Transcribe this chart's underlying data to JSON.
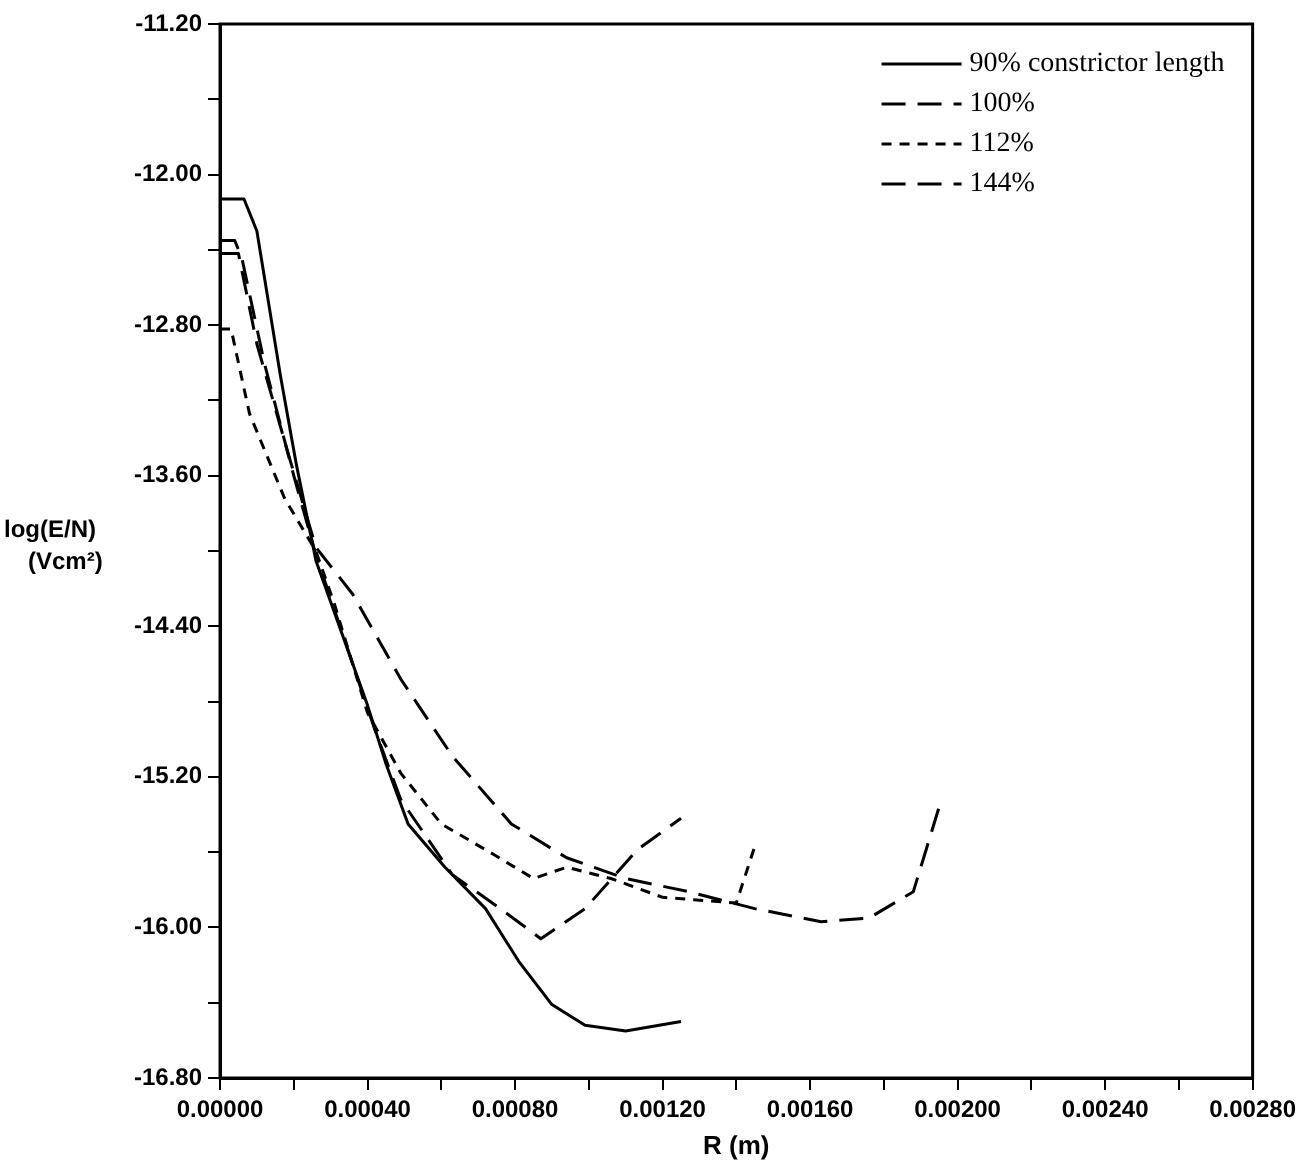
{
  "chart_data": {
    "type": "line",
    "xlabel": "R (m)",
    "ylabel": "log(E/N)\n(Vcm²)",
    "legend": "top right",
    "grid": false,
    "marker": "none",
    "xlim": [
      0,
      0.0028
    ],
    "xticks": [
      {
        "value": 0,
        "label": "0.00000"
      },
      {
        "value": 0.0002,
        "label": null
      },
      {
        "value": 0.0004,
        "label": "0.00040"
      },
      {
        "value": 0.0006,
        "label": null
      },
      {
        "value": 0.0008,
        "label": "0.00080"
      },
      {
        "value": 0.001,
        "label": null
      },
      {
        "value": 0.0012,
        "label": "0.00120"
      },
      {
        "value": 0.0014,
        "label": null
      },
      {
        "value": 0.0016,
        "label": "0.00160"
      },
      {
        "value": 0.0018,
        "label": null
      },
      {
        "value": 0.002,
        "label": "0.00200"
      },
      {
        "value": 0.0022,
        "label": null
      },
      {
        "value": 0.0024,
        "label": "0.00240"
      },
      {
        "value": 0.0026,
        "label": null
      },
      {
        "value": 0.0028,
        "label": "0.00280"
      }
    ],
    "ylim": [
      -16.8,
      -11.2
    ],
    "yticks": [
      {
        "value": -11.2,
        "label": "-11.20"
      },
      {
        "value": -11.6,
        "label": null
      },
      {
        "value": -12.0,
        "label": "-12.00"
      },
      {
        "value": -12.4,
        "label": null
      },
      {
        "value": -12.8,
        "label": "-12.80"
      },
      {
        "value": -13.2,
        "label": null
      },
      {
        "value": -13.6,
        "label": "-13.60"
      },
      {
        "value": -14.0,
        "label": null
      },
      {
        "value": -14.4,
        "label": "-14.40"
      },
      {
        "value": -14.8,
        "label": null
      },
      {
        "value": -15.2,
        "label": "-15.20"
      },
      {
        "value": -15.6,
        "label": null
      },
      {
        "value": -16.0,
        "label": "-16.00"
      },
      {
        "value": -16.4,
        "label": null
      },
      {
        "value": -16.8,
        "label": "-16.80"
      }
    ],
    "series": [
      {
        "name": "90% constrictor length",
        "color": "#000000",
        "line_style": "solid",
        "x": [
          0,
          6.5e-05,
          0.0001,
          0.000164,
          0.000207,
          0.00026,
          0.0004,
          0.00045,
          0.00051,
          0.00061,
          0.00072,
          0.00081,
          0.0009,
          0.00099,
          0.0011,
          0.00125
        ],
        "values": [
          -12.13,
          -12.13,
          -12.3,
          -13.07,
          -13.54,
          -14.05,
          -14.82,
          -15.13,
          -15.45,
          -15.68,
          -15.9,
          -16.18,
          -16.41,
          -16.52,
          -16.55,
          -16.5
        ]
      },
      {
        "name": "100%",
        "color": "#000000",
        "line_style": "dashed",
        "x": [
          0,
          4e-05,
          6e-05,
          0.00012,
          0.0002,
          0.00026,
          0.00042,
          0.00049,
          0.00063,
          0.00076,
          0.00087,
          0.00099,
          0.00113,
          0.00125
        ],
        "values": [
          -12.35,
          -12.35,
          -12.45,
          -13.0,
          -13.6,
          -14.02,
          -14.95,
          -15.32,
          -15.72,
          -15.9,
          -16.06,
          -15.9,
          -15.59,
          -15.42
        ]
      },
      {
        "name": "112%",
        "color": "#000000",
        "line_style": "dotted",
        "x": [
          0,
          3e-05,
          8e-05,
          0.000175,
          0.00026,
          0.00031,
          0.0004,
          0.00049,
          0.0006,
          0.00074,
          0.00085,
          0.00094,
          0.00106,
          0.0012,
          0.0014,
          0.00145
        ],
        "values": [
          -12.82,
          -12.82,
          -13.27,
          -13.72,
          -14.0,
          -14.28,
          -14.86,
          -15.18,
          -15.45,
          -15.61,
          -15.74,
          -15.68,
          -15.74,
          -15.84,
          -15.87,
          -15.57
        ]
      },
      {
        "name": "144%",
        "color": "#000000",
        "line_style": "dashed",
        "x": [
          0,
          5e-05,
          0.0001,
          0.00018,
          0.00026,
          0.00036,
          0.00049,
          0.00063,
          0.00079,
          0.00094,
          0.0011,
          0.00127,
          0.00145,
          0.00163,
          0.00176,
          0.00188,
          0.00195
        ],
        "values": [
          -12.42,
          -12.42,
          -12.9,
          -13.45,
          -13.98,
          -14.23,
          -14.68,
          -15.09,
          -15.45,
          -15.63,
          -15.74,
          -15.81,
          -15.9,
          -15.97,
          -15.95,
          -15.81,
          -15.36
        ]
      }
    ]
  }
}
